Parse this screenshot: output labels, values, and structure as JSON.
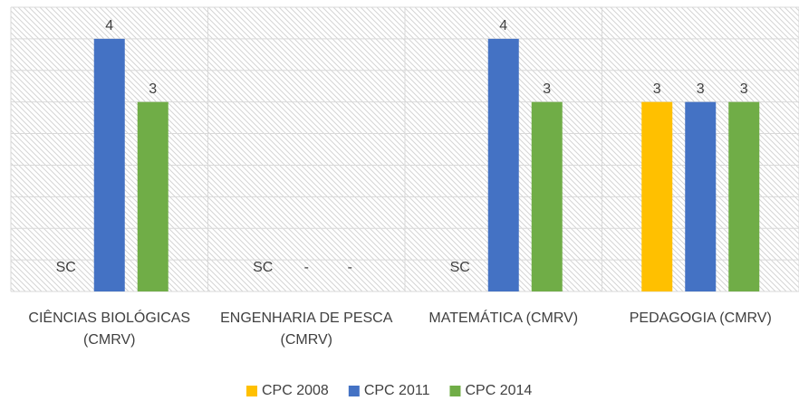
{
  "chart_data": {
    "type": "bar",
    "categories": [
      "CIÊNCIAS BIOLÓGICAS (CMRV)",
      "ENGENHARIA DE PESCA (CMRV)",
      "MATEMÁTICA (CMRV)",
      "PEDAGOGIA (CMRV)"
    ],
    "series": [
      {
        "name": "CPC 2008",
        "color": "#FFC000",
        "values": [
          null,
          null,
          null,
          3
        ],
        "value_labels": [
          "SC",
          "SC",
          "SC",
          "3"
        ]
      },
      {
        "name": "CPC 2011",
        "color": "#4472C4",
        "values": [
          4,
          null,
          4,
          3
        ],
        "value_labels": [
          "4",
          "-",
          "4",
          "3"
        ]
      },
      {
        "name": "CPC 2014",
        "color": "#70AD47",
        "values": [
          3,
          null,
          3,
          3
        ],
        "value_labels": [
          "3",
          "-",
          "3",
          "3"
        ]
      }
    ],
    "ylim": [
      0,
      4.5
    ],
    "yticks": [
      0,
      0.5,
      1,
      1.5,
      2,
      2.5,
      3,
      3.5,
      4,
      4.5
    ],
    "grid": true,
    "legend": "bottom"
  }
}
